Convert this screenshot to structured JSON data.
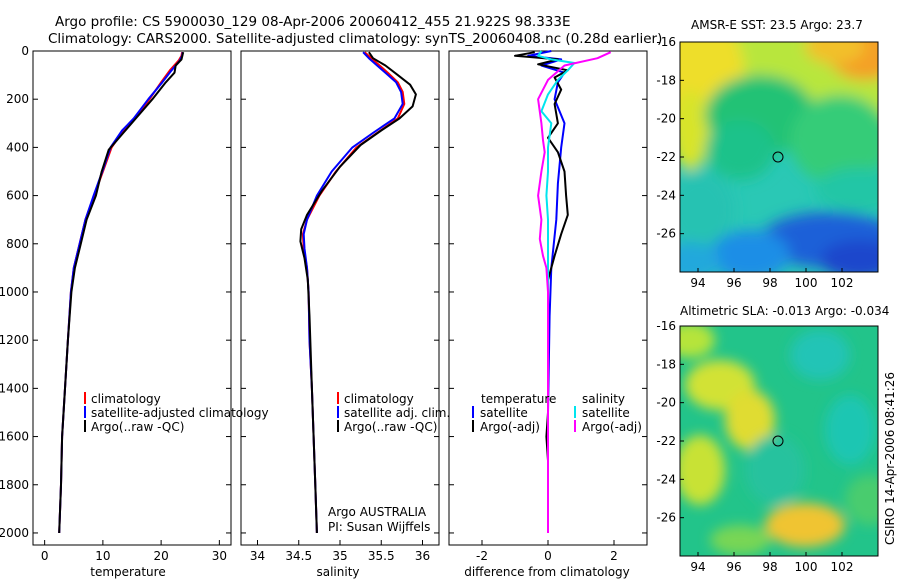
{
  "header": {
    "line1": "Argo profile: CS 5900030_129 08-Apr-2006 20060412_455 21.922S 98.333E",
    "line2": "Climatology: CARS2000. Satellite-adjusted climatology: synTS_20060408.nc (0.28d earlier)"
  },
  "side_text": "CSIRO 14-Apr-2006 08:41:26",
  "colors": {
    "red": "#ff0000",
    "blue": "#0000ff",
    "black": "#000000",
    "cyan": "#00e5ee",
    "magenta": "#ff00ff"
  },
  "chart_data": [
    {
      "id": "temperature",
      "type": "line",
      "xlabel": "temperature",
      "xlim": [
        -2,
        32
      ],
      "ylim": [
        2050,
        0
      ],
      "xticks": [
        0,
        10,
        20,
        30
      ],
      "yticks": [
        0,
        200,
        400,
        600,
        800,
        1000,
        1200,
        1400,
        1600,
        1800,
        2000
      ],
      "legend": [
        "climatology",
        "satellite-adjusted climatology",
        "Argo(..raw -QC)"
      ],
      "series": [
        {
          "name": "climatology",
          "color": "red",
          "points": [
            [
              23.6,
              5
            ],
            [
              23.5,
              20
            ],
            [
              23.0,
              40
            ],
            [
              21.5,
              80
            ],
            [
              20.0,
              130
            ],
            [
              18.0,
              200
            ],
            [
              15.5,
              280
            ],
            [
              13.5,
              330
            ],
            [
              11.5,
              400
            ],
            [
              10.0,
              500
            ],
            [
              8.5,
              600
            ],
            [
              7.0,
              700
            ],
            [
              6.0,
              800
            ],
            [
              5.0,
              900
            ],
            [
              4.5,
              1000
            ],
            [
              4.0,
              1200
            ],
            [
              3.5,
              1400
            ],
            [
              3.0,
              1600
            ],
            [
              2.8,
              1800
            ],
            [
              2.5,
              2000
            ]
          ]
        },
        {
          "name": "satellite-adjusted climatology",
          "color": "blue",
          "points": [
            [
              23.7,
              5
            ],
            [
              23.6,
              20
            ],
            [
              23.2,
              40
            ],
            [
              21.8,
              80
            ],
            [
              20.2,
              130
            ],
            [
              17.8,
              200
            ],
            [
              15.3,
              280
            ],
            [
              13.3,
              330
            ],
            [
              11.3,
              400
            ],
            [
              9.9,
              500
            ],
            [
              8.4,
              600
            ],
            [
              7.0,
              700
            ],
            [
              6.0,
              800
            ],
            [
              5.0,
              900
            ],
            [
              4.5,
              1000
            ],
            [
              4.0,
              1200
            ],
            [
              3.5,
              1400
            ],
            [
              3.0,
              1600
            ],
            [
              2.8,
              1800
            ],
            [
              2.5,
              2000
            ]
          ]
        },
        {
          "name": "Argo(..raw -QC)",
          "color": "black",
          "points": [
            [
              23.8,
              5
            ],
            [
              23.5,
              35
            ],
            [
              22.5,
              60
            ],
            [
              22.3,
              90
            ],
            [
              20.8,
              130
            ],
            [
              18.5,
              200
            ],
            [
              16.0,
              270
            ],
            [
              13.5,
              340
            ],
            [
              11.0,
              410
            ],
            [
              9.8,
              500
            ],
            [
              8.8,
              600
            ],
            [
              7.2,
              700
            ],
            [
              6.2,
              800
            ],
            [
              5.2,
              900
            ],
            [
              4.6,
              1000
            ],
            [
              4.0,
              1200
            ],
            [
              3.5,
              1400
            ],
            [
              3.0,
              1600
            ],
            [
              2.8,
              1800
            ],
            [
              2.5,
              2000
            ]
          ]
        }
      ]
    },
    {
      "id": "salinity",
      "type": "line",
      "xlabel": "salinity",
      "xlim": [
        33.8,
        36.2
      ],
      "ylim": [
        2050,
        0
      ],
      "xticks": [
        34,
        34.5,
        35,
        35.5,
        36
      ],
      "legend": [
        "climatology",
        "satellite adj. clim.",
        "Argo(..raw -QC)"
      ],
      "annotation": [
        "Argo AUSTRALIA",
        "PI: Susan Wijffels"
      ],
      "series": [
        {
          "name": "climatology",
          "color": "red",
          "points": [
            [
              35.3,
              5
            ],
            [
              35.38,
              30
            ],
            [
              35.48,
              60
            ],
            [
              35.58,
              90
            ],
            [
              35.7,
              130
            ],
            [
              35.76,
              170
            ],
            [
              35.78,
              220
            ],
            [
              35.7,
              280
            ],
            [
              35.45,
              340
            ],
            [
              35.2,
              400
            ],
            [
              34.95,
              500
            ],
            [
              34.75,
              600
            ],
            [
              34.6,
              700
            ],
            [
              34.55,
              760
            ],
            [
              34.56,
              820
            ],
            [
              34.6,
              900
            ],
            [
              34.62,
              1000
            ],
            [
              34.63,
              1200
            ],
            [
              34.66,
              1400
            ],
            [
              34.68,
              1600
            ],
            [
              34.7,
              1800
            ],
            [
              34.72,
              2000
            ]
          ]
        },
        {
          "name": "satellite adj. clim.",
          "color": "blue",
          "points": [
            [
              35.28,
              5
            ],
            [
              35.35,
              30
            ],
            [
              35.45,
              60
            ],
            [
              35.55,
              90
            ],
            [
              35.68,
              130
            ],
            [
              35.74,
              170
            ],
            [
              35.76,
              220
            ],
            [
              35.66,
              280
            ],
            [
              35.4,
              340
            ],
            [
              35.15,
              400
            ],
            [
              34.9,
              500
            ],
            [
              34.72,
              600
            ],
            [
              34.6,
              700
            ],
            [
              34.56,
              760
            ],
            [
              34.57,
              820
            ],
            [
              34.6,
              900
            ],
            [
              34.62,
              1000
            ],
            [
              34.63,
              1200
            ],
            [
              34.66,
              1400
            ],
            [
              34.68,
              1600
            ],
            [
              34.7,
              1800
            ],
            [
              34.72,
              2000
            ]
          ]
        },
        {
          "name": "Argo(..raw -QC)",
          "color": "black",
          "points": [
            [
              35.35,
              5
            ],
            [
              35.4,
              30
            ],
            [
              35.55,
              60
            ],
            [
              35.7,
              100
            ],
            [
              35.85,
              140
            ],
            [
              35.92,
              180
            ],
            [
              35.88,
              230
            ],
            [
              35.72,
              280
            ],
            [
              35.5,
              330
            ],
            [
              35.25,
              390
            ],
            [
              35.0,
              480
            ],
            [
              34.78,
              580
            ],
            [
              34.6,
              680
            ],
            [
              34.53,
              740
            ],
            [
              34.52,
              790
            ],
            [
              34.57,
              860
            ],
            [
              34.61,
              950
            ],
            [
              34.63,
              1100
            ],
            [
              34.66,
              1400
            ],
            [
              34.68,
              1600
            ],
            [
              34.7,
              1800
            ],
            [
              34.72,
              2000
            ]
          ]
        }
      ]
    },
    {
      "id": "difference",
      "type": "line",
      "xlabel": "difference from climatology",
      "xlim": [
        -3,
        3
      ],
      "ylim": [
        2050,
        0
      ],
      "xticks": [
        -2,
        0,
        2
      ],
      "legend_left": [
        "temperature",
        "satellite",
        "Argo(-adj)"
      ],
      "legend_right": [
        "salinity",
        "satellite",
        "Argo(-adj)"
      ],
      "series": [
        {
          "name": "temperature satellite",
          "color": "blue",
          "points": [
            [
              0.1,
              0
            ],
            [
              -0.6,
              20
            ],
            [
              0.4,
              35
            ],
            [
              -0.2,
              60
            ],
            [
              0.5,
              90
            ],
            [
              0.3,
              130
            ],
            [
              0.2,
              200
            ],
            [
              0.5,
              300
            ],
            [
              0.4,
              400
            ],
            [
              0.3,
              550
            ],
            [
              0.25,
              700
            ],
            [
              0.1,
              900
            ],
            [
              0.05,
              1100
            ],
            [
              0.0,
              1500
            ],
            [
              0.0,
              2000
            ]
          ]
        },
        {
          "name": "temperature Argo(-adj)",
          "color": "black",
          "points": [
            [
              -0.4,
              5
            ],
            [
              -1.0,
              20
            ],
            [
              0.3,
              35
            ],
            [
              -0.3,
              55
            ],
            [
              0.6,
              80
            ],
            [
              0.2,
              110
            ],
            [
              0.4,
              160
            ],
            [
              0.2,
              220
            ],
            [
              0.3,
              300
            ],
            [
              0.0,
              360
            ],
            [
              0.3,
              420
            ],
            [
              0.5,
              500
            ],
            [
              0.55,
              600
            ],
            [
              0.6,
              680
            ],
            [
              0.4,
              760
            ],
            [
              0.2,
              850
            ],
            [
              0.0,
              950
            ],
            [
              0.0,
              1500
            ],
            [
              -0.05,
              1600
            ],
            [
              0.0,
              1700
            ],
            [
              0.0,
              2000
            ]
          ]
        },
        {
          "name": "salinity satellite",
          "color": "cyan",
          "points": [
            [
              -0.2,
              0
            ],
            [
              -0.3,
              20
            ],
            [
              0.1,
              35
            ],
            [
              0.8,
              50
            ],
            [
              0.6,
              80
            ],
            [
              0.3,
              120
            ],
            [
              0.0,
              180
            ],
            [
              -0.2,
              250
            ],
            [
              0.1,
              300
            ],
            [
              0.0,
              400
            ],
            [
              0.0,
              500
            ],
            [
              -0.05,
              600
            ],
            [
              0.0,
              700
            ],
            [
              0.0,
              900
            ],
            [
              0.0,
              1200
            ],
            [
              0.0,
              2000
            ]
          ]
        },
        {
          "name": "salinity Argo(-adj)",
          "color": "magenta",
          "points": [
            [
              1.9,
              5
            ],
            [
              1.5,
              30
            ],
            [
              0.5,
              60
            ],
            [
              0.0,
              120
            ],
            [
              -0.3,
              200
            ],
            [
              -0.2,
              300
            ],
            [
              -0.15,
              370
            ],
            [
              -0.1,
              420
            ],
            [
              -0.2,
              500
            ],
            [
              -0.3,
              600
            ],
            [
              -0.2,
              700
            ],
            [
              -0.25,
              780
            ],
            [
              -0.15,
              850
            ],
            [
              -0.05,
              900
            ],
            [
              0.0,
              1000
            ],
            [
              0.0,
              2000
            ]
          ]
        }
      ]
    },
    {
      "id": "sst-map",
      "type": "heatmap",
      "title": "AMSR-E SST: 23.5 Argo: 23.7",
      "xticks": [
        94,
        96,
        98,
        100,
        102
      ],
      "yticks": [
        -16,
        -18,
        -20,
        -22,
        -24,
        -26
      ],
      "xlim": [
        93,
        104
      ],
      "ylim": [
        -28,
        -16
      ],
      "marker": [
        98.333,
        -21.922
      ]
    },
    {
      "id": "sla-map",
      "type": "heatmap",
      "title": "Altimetric SLA: -0.013 Argo: -0.034",
      "xticks": [
        94,
        96,
        98,
        100,
        102
      ],
      "yticks": [
        -16,
        -18,
        -20,
        -22,
        -24,
        -26
      ],
      "xlim": [
        93,
        104
      ],
      "ylim": [
        -28,
        -16
      ],
      "marker": [
        98.333,
        -21.922
      ]
    }
  ]
}
